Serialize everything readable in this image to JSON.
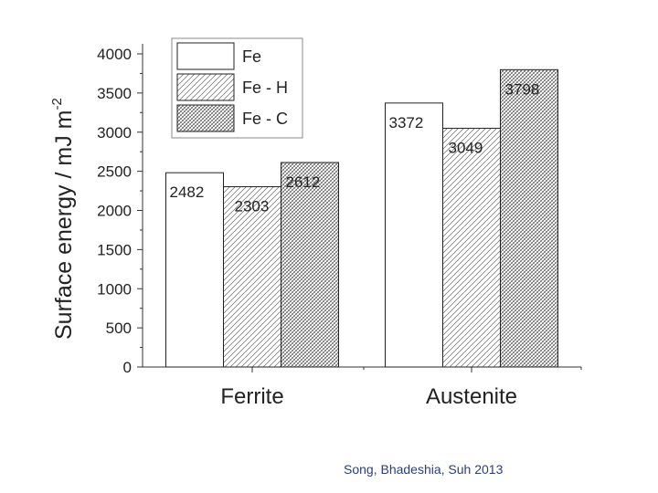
{
  "chart_data": {
    "type": "bar",
    "ylabel": "Surface energy / mJ m",
    "ylabel_sup": "-2",
    "categories": [
      "Ferrite",
      "Austenite"
    ],
    "series": [
      {
        "name": "Fe",
        "values": [
          2482,
          3372
        ],
        "pattern": "none"
      },
      {
        "name": "Fe - H",
        "values": [
          2303,
          3049
        ],
        "pattern": "light-hatch"
      },
      {
        "name": "Fe - C",
        "values": [
          2612,
          3798
        ],
        "pattern": "dense-hatch"
      }
    ],
    "data_labels": [
      [
        "2482",
        "3372"
      ],
      [
        "2303",
        "3049"
      ],
      [
        "2612",
        "3798"
      ]
    ],
    "ylim": [
      0,
      4000
    ],
    "yticks": [
      0,
      500,
      1000,
      1500,
      2000,
      2500,
      3000,
      3500,
      4000
    ],
    "legend_position": "top-left",
    "grid": false,
    "colors": {
      "bar_fill": "#ffffff",
      "stroke": "#222222",
      "hatch": "#555555"
    }
  },
  "credit": "Song, Bhadeshia, Suh 2013"
}
